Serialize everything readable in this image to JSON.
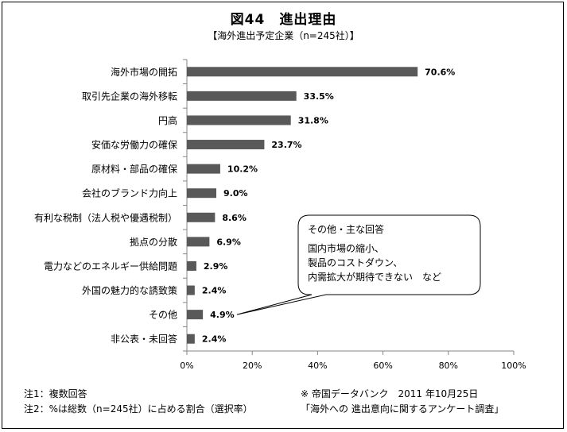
{
  "title": "図44　進出理由",
  "subtitle": "【海外進出予定企業（n=245社）】",
  "chart_data": {
    "type": "bar",
    "orientation": "horizontal",
    "categories": [
      "海外市場の開拓",
      "取引先企業の海外移転",
      "円高",
      "安価な労働力の確保",
      "原材料・部品の確保",
      "会社のブランド力向上",
      "有利な税制（法人税や優遇税制）",
      "拠点の分散",
      "電力などのエネルギー供給問題",
      "外国の魅力的な誘致策",
      "その他",
      "非公表・未回答"
    ],
    "values": [
      70.6,
      33.5,
      31.8,
      23.7,
      10.2,
      9.0,
      8.6,
      6.9,
      2.9,
      2.4,
      4.9,
      2.4
    ],
    "value_labels": [
      "70.6%",
      "33.5%",
      "31.8%",
      "23.7%",
      "10.2%",
      "9.0%",
      "8.6%",
      "6.9%",
      "2.9%",
      "2.4%",
      "4.9%",
      "2.4%"
    ],
    "xlim": [
      0,
      100
    ],
    "xticks": [
      "0%",
      "20%",
      "40%",
      "60%",
      "80%",
      "100%"
    ],
    "xtick_values": [
      0,
      20,
      40,
      60,
      80,
      100
    ],
    "bar_color": "#595959",
    "grid": false,
    "legend": "none"
  },
  "callout": {
    "heading": "その他・主な回答",
    "lines": [
      "国内市場の縮小、",
      "製品のコストダウン、",
      "内需拡大が期待できない　など"
    ]
  },
  "notes": {
    "note1": "注1：複数回答",
    "note2": "注2：%は総数（n=245社）に占める割合（選択率）",
    "source1": "※ 帝国データバンク　2011 年10月25日",
    "source2": "「海外への 進出意向に関するアンケート調査」"
  }
}
